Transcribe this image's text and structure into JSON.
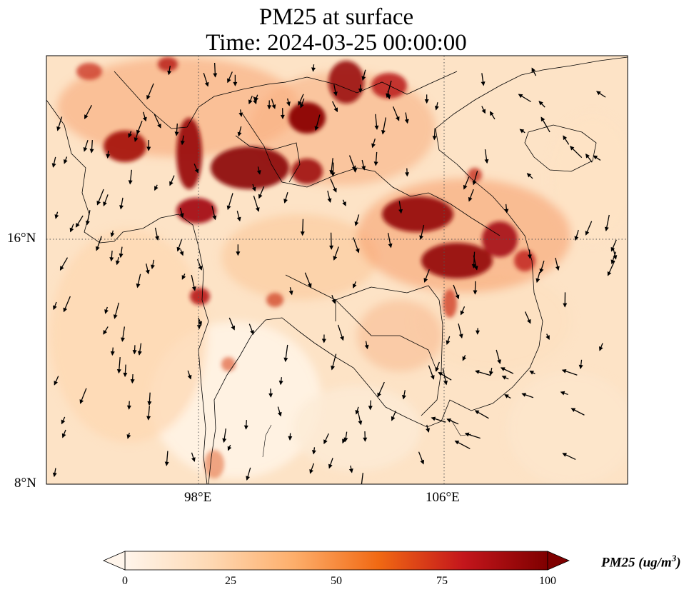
{
  "title": {
    "line1": "PM25 at surface",
    "line2": "Time: 2024-03-25 00:00:00"
  },
  "axes": {
    "lat_ticks": [
      "16°N",
      "8°N"
    ],
    "lon_ticks": [
      "98°E",
      "106°E"
    ]
  },
  "colorbar": {
    "label": "PM25 (ug/m",
    "label_sup": "3",
    "label_tail": ")",
    "ticks": [
      "0",
      "25",
      "50",
      "75",
      "100"
    ],
    "colormap": [
      "#fff5eb",
      "#fdd0a2",
      "#fd8d3c",
      "#e6550d",
      "#a50f15",
      "#67000d"
    ],
    "extend": "both"
  },
  "map": {
    "extent": {
      "lon_min": 93,
      "lon_max": 112,
      "lat_min": 8,
      "lat_max": 22
    },
    "gridlines": "dotted",
    "coastline_color": "#000000"
  }
}
